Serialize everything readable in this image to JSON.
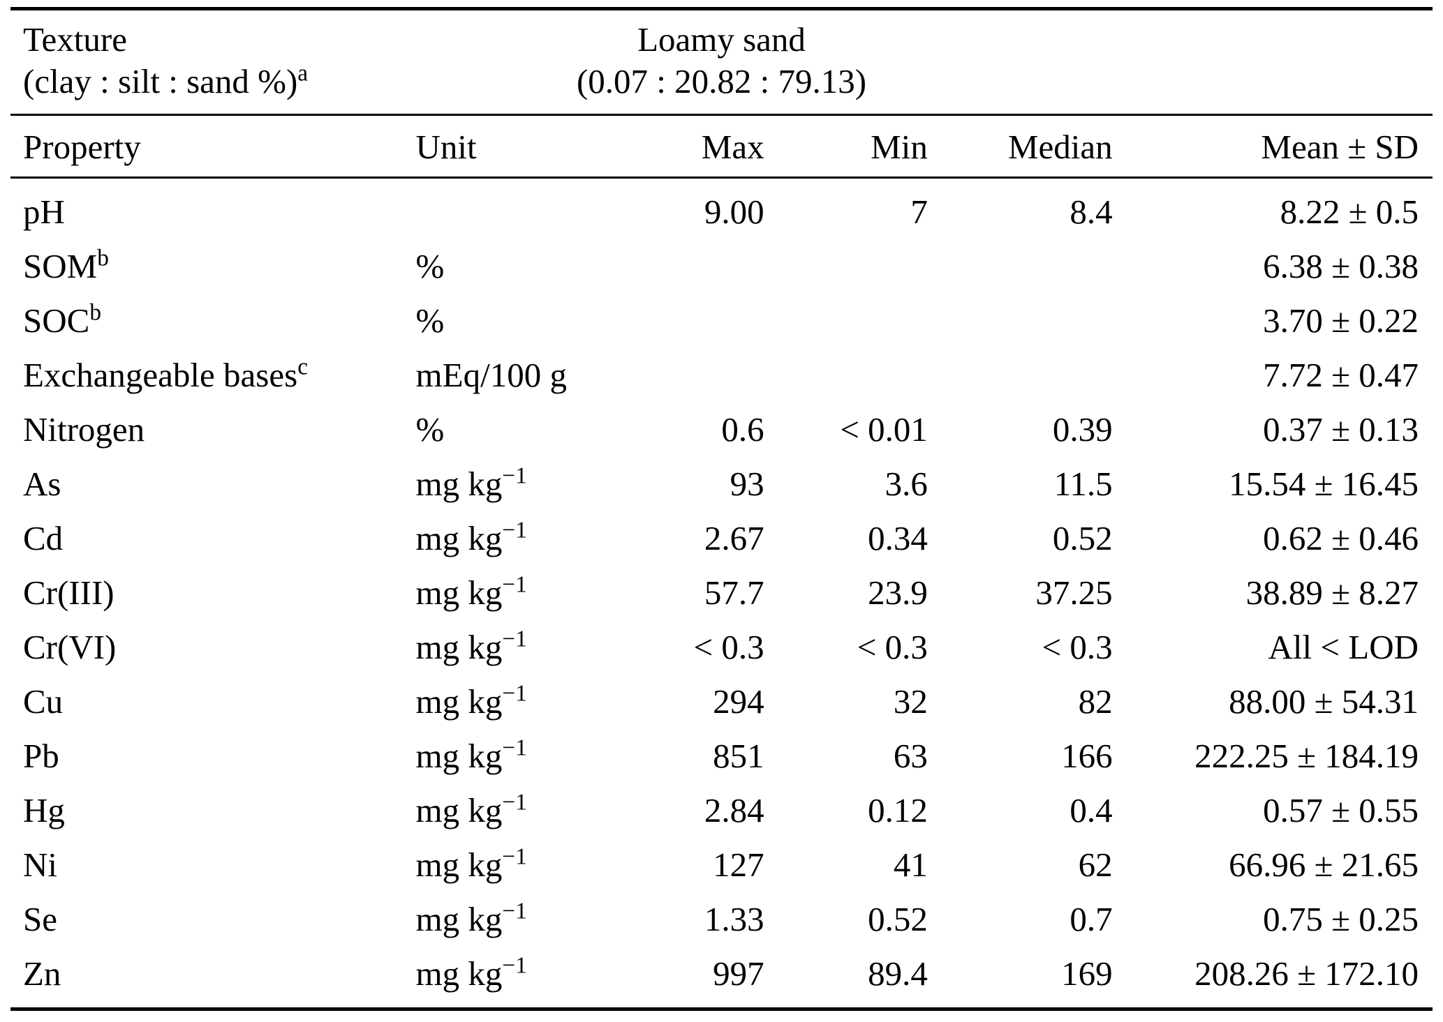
{
  "page": {
    "background": "#ffffff",
    "text_color": "#000000",
    "rule_color": "#000000"
  },
  "header": {
    "texture_label_line1": "Texture",
    "texture_label_line2": "(clay : silt : sand %)",
    "texture_label_sup": "a",
    "texture_value_line1": "Loamy sand",
    "texture_value_line2": "(0.07 : 20.82 : 79.13)"
  },
  "columns": {
    "property": "Property",
    "unit": "Unit",
    "max": "Max",
    "min": "Min",
    "median": "Median",
    "mean": "Mean ± SD"
  },
  "rows": [
    {
      "property": "pH",
      "property_sup": "",
      "unit": "",
      "unit_sup": "",
      "max": "9.00",
      "min": "7",
      "median": "8.4",
      "mean": "8.22 ± 0.5"
    },
    {
      "property": "SOM",
      "property_sup": "b",
      "unit": "%",
      "unit_sup": "",
      "max": "",
      "min": "",
      "median": "",
      "mean": "6.38 ± 0.38"
    },
    {
      "property": "SOC",
      "property_sup": "b",
      "unit": "%",
      "unit_sup": "",
      "max": "",
      "min": "",
      "median": "",
      "mean": "3.70 ± 0.22"
    },
    {
      "property": "Exchangeable bases",
      "property_sup": "c",
      "unit": "mEq/100 g",
      "unit_sup": "",
      "max": "",
      "min": "",
      "median": "",
      "mean": "7.72 ± 0.47"
    },
    {
      "property": "Nitrogen",
      "property_sup": "",
      "unit": "%",
      "unit_sup": "",
      "max": "0.6",
      "min": "< 0.01",
      "median": "0.39",
      "mean": "0.37 ± 0.13"
    },
    {
      "property": "As",
      "property_sup": "",
      "unit": "mg kg",
      "unit_sup": "−1",
      "max": "93",
      "min": "3.6",
      "median": "11.5",
      "mean": "15.54 ± 16.45"
    },
    {
      "property": "Cd",
      "property_sup": "",
      "unit": "mg kg",
      "unit_sup": "−1",
      "max": "2.67",
      "min": "0.34",
      "median": "0.52",
      "mean": "0.62 ± 0.46"
    },
    {
      "property": "Cr(III)",
      "property_sup": "",
      "unit": "mg kg",
      "unit_sup": "−1",
      "max": "57.7",
      "min": "23.9",
      "median": "37.25",
      "mean": "38.89 ± 8.27"
    },
    {
      "property": "Cr(VI)",
      "property_sup": "",
      "unit": "mg kg",
      "unit_sup": "−1",
      "max": "< 0.3",
      "min": "< 0.3",
      "median": "< 0.3",
      "mean": "All < LOD"
    },
    {
      "property": "Cu",
      "property_sup": "",
      "unit": "mg kg",
      "unit_sup": "−1",
      "max": "294",
      "min": "32",
      "median": "82",
      "mean": "88.00 ± 54.31"
    },
    {
      "property": "Pb",
      "property_sup": "",
      "unit": "mg kg",
      "unit_sup": "−1",
      "max": "851",
      "min": "63",
      "median": "166",
      "mean": "222.25 ± 184.19"
    },
    {
      "property": "Hg",
      "property_sup": "",
      "unit": "mg kg",
      "unit_sup": "−1",
      "max": "2.84",
      "min": "0.12",
      "median": "0.4",
      "mean": "0.57 ± 0.55"
    },
    {
      "property": "Ni",
      "property_sup": "",
      "unit": "mg kg",
      "unit_sup": "−1",
      "max": "127",
      "min": "41",
      "median": "62",
      "mean": "66.96 ± 21.65"
    },
    {
      "property": "Se",
      "property_sup": "",
      "unit": "mg kg",
      "unit_sup": "−1",
      "max": "1.33",
      "min": "0.52",
      "median": "0.7",
      "mean": "0.75 ± 0.25"
    },
    {
      "property": "Zn",
      "property_sup": "",
      "unit": "mg kg",
      "unit_sup": "−1",
      "max": "997",
      "min": "89.4",
      "median": "169",
      "mean": "208.26 ± 172.10"
    }
  ]
}
